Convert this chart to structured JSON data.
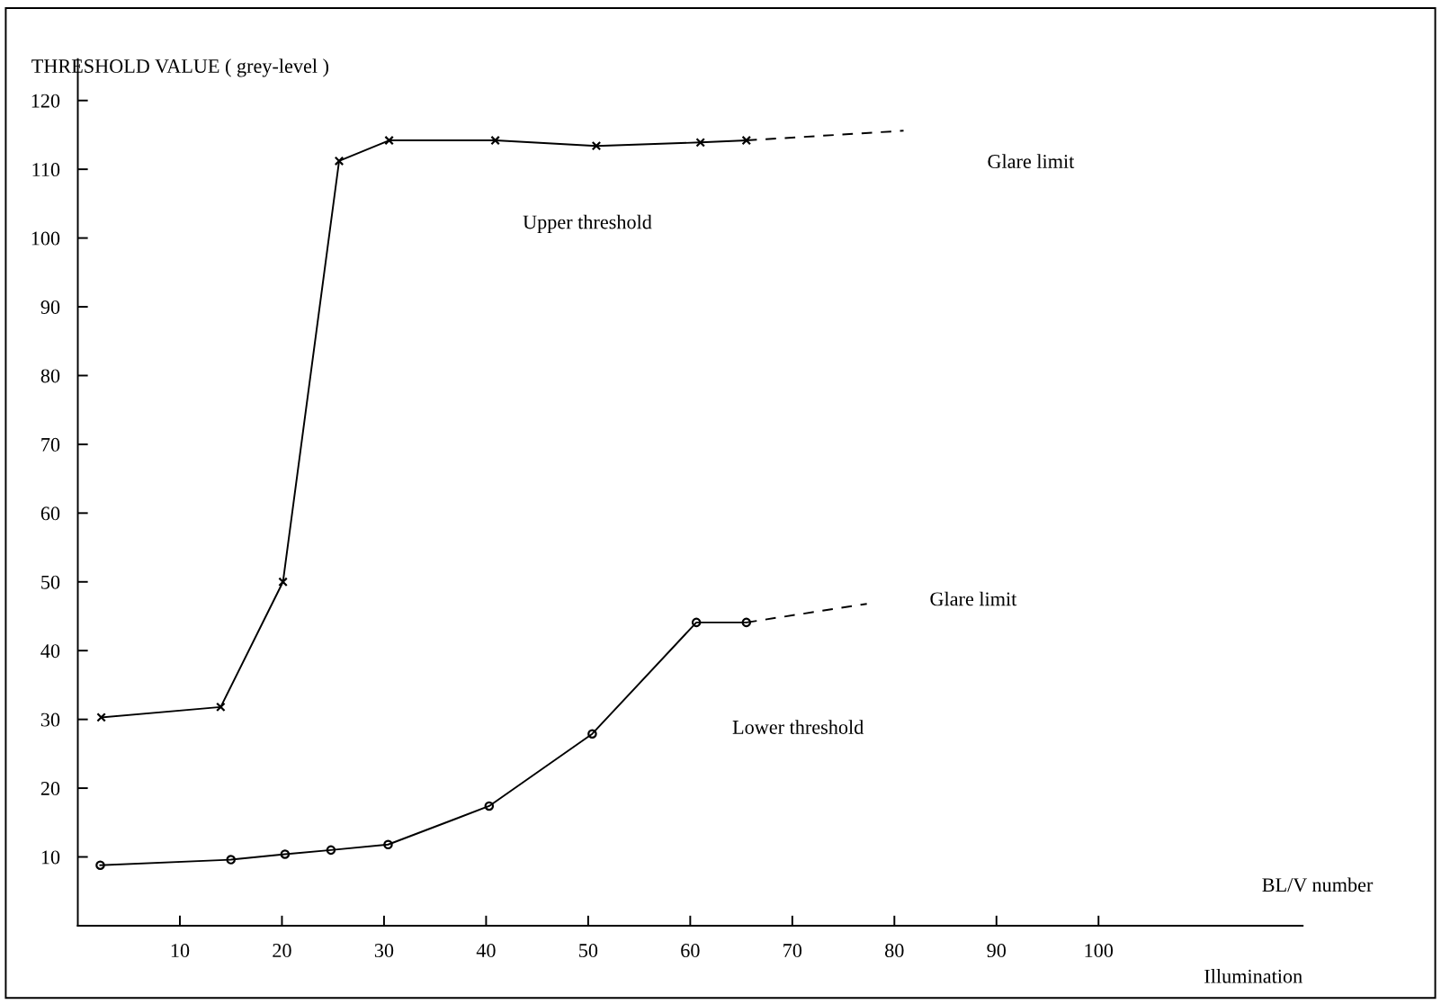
{
  "chart_data": {
    "type": "line",
    "xlabel": "Illumination",
    "ylabel": "THRESHOLD VALUE ( grey-level )",
    "series": [
      {
        "color": "#000000",
        "marker": "cross",
        "line_style": "solid",
        "x": [
          2.3,
          14,
          20.1,
          25.6,
          30.5,
          40.9,
          50.8,
          61,
          65.5
        ],
        "values": [
          30.3,
          31.8,
          50,
          111.2,
          114.2,
          114.2,
          113.4,
          113.9,
          114.2
        ]
      },
      {
        "color": "#000000",
        "marker": "none",
        "line_style": "dashed",
        "x": [
          65.5,
          80.9
        ],
        "values": [
          114.2,
          115.6
        ]
      },
      {
        "color": "#000000",
        "marker": "circle",
        "line_style": "solid",
        "x": [
          2.2,
          15,
          20.3,
          24.8,
          30.4,
          40.3,
          50.4,
          60.6,
          65.5
        ],
        "values": [
          8.8,
          9.6,
          10.4,
          11,
          11.8,
          17.4,
          27.9,
          44.1,
          44.1
        ]
      },
      {
        "color": "#000000",
        "marker": "none",
        "line_style": "dashed",
        "x": [
          65.5,
          77.3
        ],
        "values": [
          44.1,
          46.8
        ]
      }
    ],
    "xlim": [
      0,
      120
    ],
    "ylim": [
      0,
      126
    ],
    "xticks": [
      10,
      20,
      30,
      40,
      50,
      60,
      70,
      80,
      90,
      100
    ],
    "yticks": [
      10,
      20,
      30,
      40,
      50,
      60,
      70,
      80,
      90,
      100,
      110,
      120
    ],
    "grid": false,
    "legend": false,
    "annotations": [
      "Upper threshold",
      "Glare limit",
      "Glare limit",
      "Lower threshold",
      "BL/V number"
    ]
  }
}
